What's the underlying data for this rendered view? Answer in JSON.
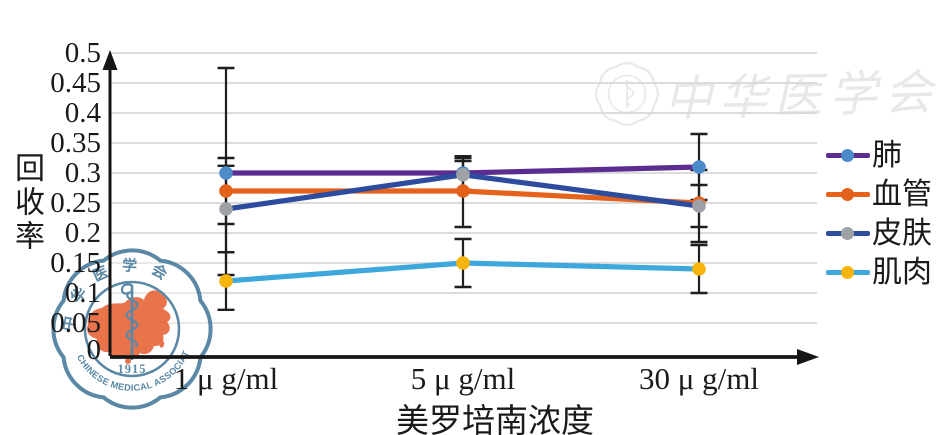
{
  "watermarks": {
    "top_right_text": "中华医学会",
    "seal": {
      "zh_chars": "中华医学会",
      "en_text": "CHINESE MEDICAL ASSOCIATION",
      "year": "1915",
      "blue": "#4E7FA0",
      "orange": "#E8693E"
    }
  },
  "chart_data": {
    "type": "line",
    "title": "",
    "xlabel": "美罗培南浓度",
    "ylabel": "回收率",
    "categories": [
      "1 μ g/ml",
      "5 μ g/ml",
      "30 μ g/ml"
    ],
    "ylim": [
      0,
      0.5
    ],
    "ytick_step": 0.05,
    "ytick_labels": [
      "0",
      "0.05",
      "0.1",
      "0.15",
      "0.2",
      "0.25",
      "0.3",
      "0.35",
      "0.4",
      "0.45",
      "0.5"
    ],
    "grid": true,
    "legend_position": "right",
    "error_bars": true,
    "series": [
      {
        "name": "肺",
        "line_color": "#5B2D90",
        "marker_color": "#4C8BC9",
        "values": [
          0.3,
          0.3,
          0.31
        ],
        "err_low": [
          0.13,
          0.272,
          0.255
        ],
        "err_high": [
          0.475,
          0.328,
          0.365
        ]
      },
      {
        "name": "血管",
        "line_color": "#E4621B",
        "marker_color": "#E2611B",
        "values": [
          0.27,
          0.27,
          0.25
        ],
        "err_low": [
          0.215,
          0.21,
          0.21
        ],
        "err_high": [
          0.325,
          0.325,
          0.28
        ]
      },
      {
        "name": "皮肤",
        "line_color": "#2E4C9E",
        "marker_color": "#9EA1A6",
        "values": [
          0.24,
          0.297,
          0.245
        ],
        "err_low": [
          0.168,
          0.268,
          0.185
        ],
        "err_high": [
          0.312,
          0.32,
          0.305
        ]
      },
      {
        "name": "肌肉",
        "line_color": "#3EA8DD",
        "marker_color": "#F6B40C",
        "values": [
          0.12,
          0.15,
          0.14
        ],
        "err_low": [
          0.072,
          0.11,
          0.1
        ],
        "err_high": [
          0.168,
          0.19,
          0.18
        ]
      }
    ]
  }
}
